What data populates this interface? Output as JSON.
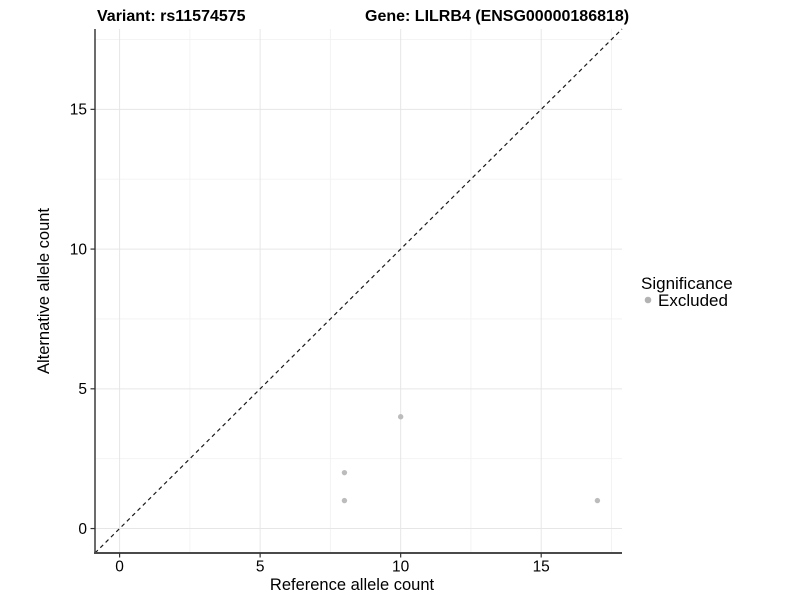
{
  "header": {
    "variant_title": "Variant: rs11574575",
    "gene_title": "Gene: LILRB4 (ENSG00000186818)"
  },
  "chart_data": {
    "type": "scatter",
    "xlabel": "Reference allele count",
    "ylabel": "Alternative allele count",
    "xlim": [
      -0.875,
      17.875
    ],
    "ylim": [
      -0.875,
      17.875
    ],
    "x_major_ticks": [
      0,
      5,
      10,
      15
    ],
    "y_major_ticks": [
      0,
      5,
      10,
      15
    ],
    "x_minor_gridlines": [
      2.5,
      7.5,
      12.5,
      17.5
    ],
    "y_minor_gridlines": [
      2.5,
      7.5,
      12.5,
      17.5
    ],
    "grid": true,
    "reference_line": {
      "type": "identity",
      "slope": 1,
      "intercept": 0,
      "style": "dashed"
    },
    "series": [
      {
        "name": "Excluded",
        "color": "#bcbcbc",
        "points": [
          {
            "x": 8,
            "y": 1
          },
          {
            "x": 8,
            "y": 2
          },
          {
            "x": 10,
            "y": 4
          },
          {
            "x": 17,
            "y": 1
          }
        ]
      }
    ],
    "legend": {
      "title": "Significance",
      "position": "right",
      "items": [
        {
          "label": "Excluded",
          "color": "#b3b3b3"
        }
      ]
    }
  },
  "colors": {
    "background": "#ffffff",
    "grid_major": "#e6e6e6",
    "grid_minor": "#f2f2f2",
    "axis_line_left": "#2e2e2e",
    "axis_line_bottom": "#4a4a4a",
    "tick_mark": "#333333",
    "tick_label": "#000000",
    "reference_line": "#1a1a1a"
  }
}
